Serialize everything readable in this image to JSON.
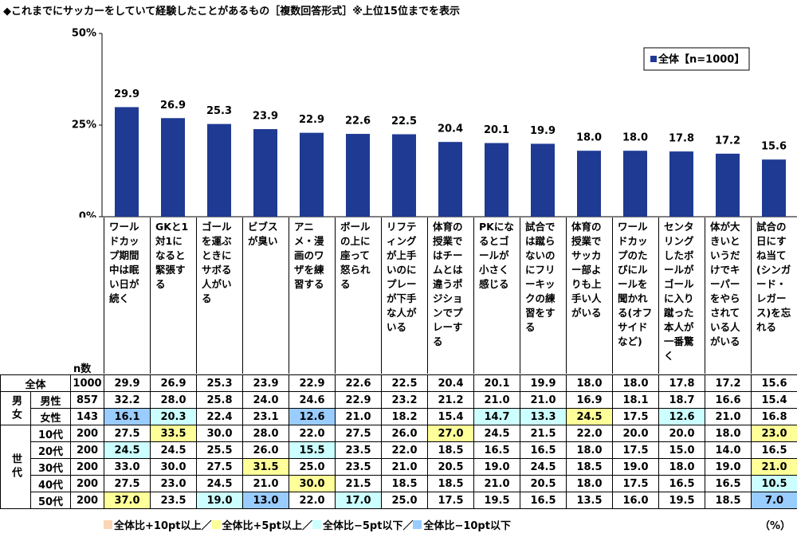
{
  "title": "◆これまでにサッカーをしていて経験したことがあるもの［複数回答形式］※上位15位までを表示",
  "chart_data": {
    "type": "bar",
    "categories": [
      "ワールドカップ期間中は眠い日が続く",
      "GKと1対1になると緊張する",
      "ゴールを運ぶときにサボる人がいる",
      "ビブスが臭い",
      "アニメ・漫画のワザを練習する",
      "ボールの上に座って怒られる",
      "リフティングが上手いのにプレーが下手な人がいる",
      "体育の授業ではチームとは違うポジションでプレーする",
      "PKになるとゴールが小さく感じる",
      "試合では蹴らないのにフリーキックの練習をする",
      "体育の授業でサッカー部よりも上手い人がいる",
      "ワールドカップのたびにルールを聞かれる(オフサイドなど)",
      "センタリングしたボールがゴールに入り蹴った本人が一番驚く",
      "体が大きいというだけでキーパーをやらされている人がいる",
      "試合の日にすね当て(シンガード・レガース)を忘れる"
    ],
    "series": [
      {
        "name": "全体【n=1000】",
        "color": "#1f3a93",
        "values": [
          29.9,
          26.9,
          25.3,
          23.9,
          22.9,
          22.6,
          22.5,
          20.4,
          20.1,
          19.9,
          18.0,
          18.0,
          17.8,
          17.2,
          15.6
        ],
        "value_labels": [
          "29.9",
          "26.9",
          "25.3",
          "23.9",
          "22.9",
          "22.6",
          "22.5",
          "20.4",
          "20.1",
          "19.9",
          "18.0",
          "18.0",
          "17.8",
          "17.2",
          "15.6"
        ]
      }
    ],
    "ylim": [
      0,
      50
    ],
    "yticks": [
      {
        "value": 0,
        "label": "0%"
      },
      {
        "value": 25,
        "label": "25%"
      },
      {
        "value": 50,
        "label": "50%"
      }
    ],
    "legend": "top-right"
  },
  "table": {
    "n_label": "n数",
    "total": {
      "label": "全体",
      "n": "1000",
      "cells": [
        "29.9",
        "26.9",
        "25.3",
        "23.9",
        "22.9",
        "22.6",
        "22.5",
        "20.4",
        "20.1",
        "19.9",
        "18.0",
        "18.0",
        "17.8",
        "17.2",
        "15.6"
      ]
    },
    "groups": [
      {
        "label": "男女",
        "rows": [
          {
            "label": "男性",
            "n": "857",
            "cells": [
              "32.2",
              "28.0",
              "25.8",
              "24.0",
              "24.6",
              "22.9",
              "23.2",
              "21.2",
              "21.0",
              "21.0",
              "16.9",
              "18.1",
              "18.7",
              "16.6",
              "15.4"
            ]
          },
          {
            "label": "女性",
            "n": "143",
            "cells": [
              "16.1",
              "20.3",
              "22.4",
              "23.1",
              "12.6",
              "21.0",
              "18.2",
              "15.4",
              "14.7",
              "13.3",
              "24.5",
              "17.5",
              "12.6",
              "21.0",
              "16.8"
            ]
          }
        ]
      },
      {
        "label": "世代",
        "rows": [
          {
            "label": "10代",
            "n": "200",
            "cells": [
              "27.5",
              "33.5",
              "30.0",
              "28.0",
              "22.0",
              "27.5",
              "26.0",
              "27.0",
              "24.5",
              "21.5",
              "22.0",
              "20.0",
              "20.0",
              "18.0",
              "23.0"
            ]
          },
          {
            "label": "20代",
            "n": "200",
            "cells": [
              "24.5",
              "24.5",
              "25.5",
              "26.0",
              "15.5",
              "23.5",
              "22.0",
              "18.5",
              "16.5",
              "16.5",
              "18.0",
              "17.5",
              "15.0",
              "14.0",
              "16.5"
            ]
          },
          {
            "label": "30代",
            "n": "200",
            "cells": [
              "33.0",
              "30.0",
              "27.5",
              "31.5",
              "25.0",
              "23.5",
              "21.0",
              "20.5",
              "19.0",
              "24.5",
              "18.5",
              "19.0",
              "18.0",
              "19.0",
              "21.0"
            ]
          },
          {
            "label": "40代",
            "n": "200",
            "cells": [
              "27.5",
              "23.0",
              "24.5",
              "21.0",
              "30.0",
              "21.5",
              "18.5",
              "18.5",
              "21.0",
              "20.5",
              "18.0",
              "17.5",
              "16.5",
              "16.5",
              "10.5"
            ]
          },
          {
            "label": "50代",
            "n": "200",
            "cells": [
              "37.0",
              "23.5",
              "19.0",
              "13.0",
              "22.0",
              "17.0",
              "25.0",
              "17.5",
              "19.5",
              "16.5",
              "13.5",
              "16.0",
              "19.5",
              "18.5",
              "7.0"
            ]
          }
        ]
      }
    ],
    "highlights": [
      {
        "group": 0,
        "row": 1,
        "col": 0,
        "legend": 3
      },
      {
        "group": 0,
        "row": 1,
        "col": 1,
        "legend": 2
      },
      {
        "group": 0,
        "row": 1,
        "col": 4,
        "legend": 3
      },
      {
        "group": 0,
        "row": 1,
        "col": 8,
        "legend": 2
      },
      {
        "group": 0,
        "row": 1,
        "col": 9,
        "legend": 2
      },
      {
        "group": 0,
        "row": 1,
        "col": 10,
        "legend": 1
      },
      {
        "group": 0,
        "row": 1,
        "col": 12,
        "legend": 2
      },
      {
        "group": 1,
        "row": 0,
        "col": 1,
        "legend": 1
      },
      {
        "group": 1,
        "row": 0,
        "col": 7,
        "legend": 1
      },
      {
        "group": 1,
        "row": 0,
        "col": 14,
        "legend": 1
      },
      {
        "group": 1,
        "row": 1,
        "col": 0,
        "legend": 2
      },
      {
        "group": 1,
        "row": 1,
        "col": 4,
        "legend": 2
      },
      {
        "group": 1,
        "row": 2,
        "col": 3,
        "legend": 1
      },
      {
        "group": 1,
        "row": 2,
        "col": 14,
        "legend": 1
      },
      {
        "group": 1,
        "row": 3,
        "col": 4,
        "legend": 1
      },
      {
        "group": 1,
        "row": 3,
        "col": 14,
        "legend": 2
      },
      {
        "group": 1,
        "row": 4,
        "col": 0,
        "legend": 1
      },
      {
        "group": 1,
        "row": 4,
        "col": 2,
        "legend": 2
      },
      {
        "group": 1,
        "row": 4,
        "col": 3,
        "legend": 3
      },
      {
        "group": 1,
        "row": 4,
        "col": 5,
        "legend": 2
      },
      {
        "group": 1,
        "row": 4,
        "col": 14,
        "legend": 3
      }
    ],
    "legend": [
      {
        "label": "全体比+10pt以上／",
        "color": "#fcd5b4"
      },
      {
        "label": "全体比+5pt以上／",
        "color": "#ffff99"
      },
      {
        "label": "全体比−5pt以下／",
        "color": "#ccffff"
      },
      {
        "label": "全体比−10pt以下",
        "color": "#99ccff"
      }
    ],
    "unit": "（%）"
  }
}
